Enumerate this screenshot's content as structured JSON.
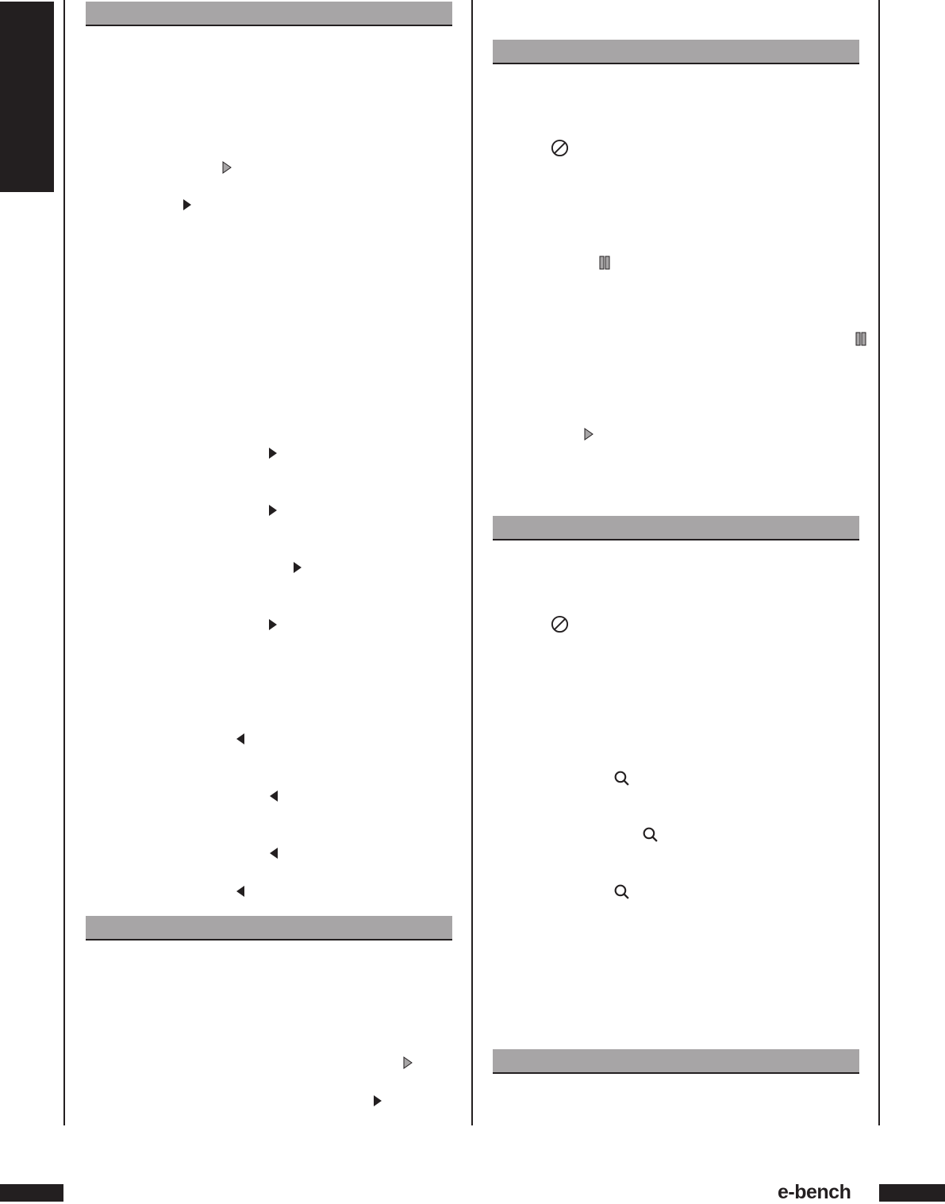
{
  "colors": {
    "header_bar": "#a7a5a6",
    "ink": "#231f20",
    "icon_gray": "#a7a5a6"
  },
  "footer": {
    "logo_text": "e-bench"
  },
  "icons": {
    "play_outline": "play-outline-icon",
    "play": "play-icon",
    "rewind": "left-triangle-icon",
    "stop": "stop-icon",
    "pause": "pause-icon",
    "zoom": "magnifier-icon"
  }
}
